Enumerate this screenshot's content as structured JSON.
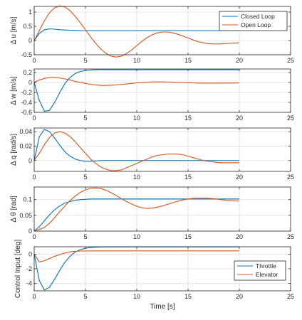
{
  "colors": {
    "blue": "#0072bd",
    "orange": "#d95319",
    "grid": "#dfdfdf",
    "axis": "#262626"
  },
  "chart_data": [
    {
      "type": "line",
      "ylabel": "Δ u [m/s]",
      "xlim": [
        0,
        25
      ],
      "ylim": [
        -0.5,
        1.2
      ],
      "yticks": [
        -0.5,
        0,
        0.5,
        1
      ],
      "ytick_labels": [
        "-0.5",
        "0",
        "0.5",
        "1"
      ],
      "xticks": [
        0,
        5,
        10,
        15,
        20,
        25
      ],
      "xtick_labels": [
        "0",
        "5",
        "10",
        "15",
        "20",
        "25"
      ],
      "grid": true,
      "legend": "top-right",
      "x": [
        0,
        0.5,
        1,
        1.5,
        2,
        2.5,
        3,
        3.5,
        4,
        4.5,
        5,
        5.5,
        6,
        6.5,
        7,
        7.5,
        8,
        8.5,
        9,
        9.5,
        10,
        10.5,
        11,
        11.5,
        12,
        12.5,
        13,
        13.5,
        14,
        14.5,
        15,
        15.5,
        16,
        16.5,
        17,
        17.5,
        18,
        18.5,
        19,
        19.5,
        20
      ],
      "series": [
        {
          "name": "Closed Loop",
          "color": "blue",
          "values": [
            0,
            0.25,
            0.38,
            0.41,
            0.4,
            0.38,
            0.37,
            0.36,
            0.355,
            0.35,
            0.35,
            0.35,
            0.35,
            0.35,
            0.35,
            0.35,
            0.35,
            0.35,
            0.35,
            0.35,
            0.35,
            0.35,
            0.35,
            0.35,
            0.35,
            0.35,
            0.35,
            0.35,
            0.35,
            0.35,
            0.35,
            0.35,
            0.35,
            0.35,
            0.35,
            0.35,
            0.35,
            0.35,
            0.35,
            0.35,
            0.35
          ]
        },
        {
          "name": "Open Loop",
          "color": "orange",
          "values": [
            0,
            0.35,
            0.7,
            0.98,
            1.15,
            1.22,
            1.18,
            1.05,
            0.85,
            0.62,
            0.38,
            0.13,
            -0.1,
            -0.3,
            -0.45,
            -0.55,
            -0.58,
            -0.55,
            -0.46,
            -0.33,
            -0.18,
            -0.03,
            0.1,
            0.2,
            0.27,
            0.3,
            0.3,
            0.27,
            0.22,
            0.16,
            0.09,
            0.02,
            -0.04,
            -0.08,
            -0.11,
            -0.12,
            -0.12,
            -0.11,
            -0.1,
            -0.09,
            -0.08
          ]
        }
      ]
    },
    {
      "type": "line",
      "ylabel": "Δ w [m/s]",
      "xlim": [
        0,
        25
      ],
      "ylim": [
        -0.6,
        0.27
      ],
      "yticks": [
        -0.6,
        -0.4,
        -0.2,
        0,
        0.2
      ],
      "ytick_labels": [
        "-0.6",
        "-0.4",
        "-0.2",
        "0",
        "0.2"
      ],
      "xticks": [
        0,
        5,
        10,
        15,
        20,
        25
      ],
      "xtick_labels": [
        "0",
        "5",
        "10",
        "15",
        "20",
        "25"
      ],
      "grid": true,
      "x": [
        0,
        0.5,
        1,
        1.5,
        2,
        2.5,
        3,
        3.5,
        4,
        4.5,
        5,
        5.5,
        6,
        6.5,
        7,
        7.5,
        8,
        8.5,
        9,
        9.5,
        10,
        10.5,
        11,
        11.5,
        12,
        12.5,
        13,
        13.5,
        14,
        14.5,
        15,
        15.5,
        16,
        16.5,
        17,
        17.5,
        18,
        18.5,
        19,
        19.5,
        20
      ],
      "series": [
        {
          "name": "Closed Loop",
          "color": "blue",
          "values": [
            0,
            -0.36,
            -0.58,
            -0.56,
            -0.4,
            -0.2,
            -0.02,
            0.1,
            0.18,
            0.22,
            0.24,
            0.25,
            0.255,
            0.255,
            0.255,
            0.255,
            0.255,
            0.255,
            0.255,
            0.255,
            0.255,
            0.255,
            0.255,
            0.255,
            0.255,
            0.255,
            0.255,
            0.255,
            0.255,
            0.255,
            0.255,
            0.255,
            0.255,
            0.255,
            0.255,
            0.255,
            0.255,
            0.255,
            0.255,
            0.255,
            0.255
          ]
        },
        {
          "name": "Open Loop",
          "color": "orange",
          "values": [
            0,
            0.05,
            0.08,
            0.1,
            0.1,
            0.09,
            0.07,
            0.05,
            0.02,
            0,
            -0.02,
            -0.04,
            -0.05,
            -0.06,
            -0.06,
            -0.055,
            -0.05,
            -0.04,
            -0.03,
            -0.02,
            -0.01,
            0,
            0.005,
            0.01,
            0.01,
            0.01,
            0.008,
            0.005,
            0.002,
            0,
            -0.005,
            -0.01,
            -0.012,
            -0.015,
            -0.015,
            -0.015,
            -0.015,
            -0.013,
            -0.012,
            -0.011,
            -0.01
          ]
        }
      ]
    },
    {
      "type": "line",
      "ylabel": "Δ q [rad/s]",
      "xlim": [
        0,
        25
      ],
      "ylim": [
        -0.015,
        0.045
      ],
      "yticks": [
        0,
        0.02,
        0.04
      ],
      "ytick_labels": [
        "0",
        "0.02",
        "0.04"
      ],
      "xticks": [
        0,
        5,
        10,
        15,
        20,
        25
      ],
      "xtick_labels": [
        "0",
        "5",
        "10",
        "15",
        "20",
        "25"
      ],
      "grid": true,
      "x": [
        0,
        0.5,
        1,
        1.5,
        2,
        2.5,
        3,
        3.5,
        4,
        4.5,
        5,
        5.5,
        6,
        6.5,
        7,
        7.5,
        8,
        8.5,
        9,
        9.5,
        10,
        10.5,
        11,
        11.5,
        12,
        12.5,
        13,
        13.5,
        14,
        14.5,
        15,
        15.5,
        16,
        16.5,
        17,
        17.5,
        18,
        18.5,
        19,
        19.5,
        20
      ],
      "series": [
        {
          "name": "Closed Loop",
          "color": "blue",
          "values": [
            0,
            0.033,
            0.043,
            0.04,
            0.031,
            0.021,
            0.012,
            0.006,
            0.002,
            0,
            -0.001,
            -0.001,
            -0.0005,
            0,
            0,
            0,
            0,
            0,
            0,
            0,
            0,
            0,
            0,
            0,
            0,
            0,
            0,
            0,
            0,
            0,
            0,
            0,
            0,
            0,
            0,
            0,
            0,
            0,
            0,
            0,
            0
          ]
        },
        {
          "name": "Open Loop",
          "color": "orange",
          "values": [
            0,
            0.01,
            0.022,
            0.032,
            0.038,
            0.04,
            0.038,
            0.033,
            0.026,
            0.018,
            0.01,
            0.002,
            -0.004,
            -0.009,
            -0.012,
            -0.014,
            -0.014,
            -0.013,
            -0.01,
            -0.007,
            -0.004,
            -0.001,
            0.002,
            0.005,
            0.007,
            0.008,
            0.009,
            0.009,
            0.009,
            0.008,
            0.006,
            0.004,
            0.002,
            0,
            -0.001,
            -0.002,
            -0.003,
            -0.003,
            -0.003,
            -0.003,
            -0.003
          ]
        }
      ]
    },
    {
      "type": "line",
      "ylabel": "Δ θ [rad]",
      "xlim": [
        0,
        25
      ],
      "ylim": [
        0,
        0.14
      ],
      "yticks": [
        0,
        0.05,
        0.1
      ],
      "ytick_labels": [
        "0",
        "0.05",
        "0.1"
      ],
      "xticks": [
        0,
        5,
        10,
        15,
        20,
        25
      ],
      "xtick_labels": [
        "0",
        "5",
        "10",
        "15",
        "20",
        "25"
      ],
      "grid": true,
      "x": [
        0,
        0.5,
        1,
        1.5,
        2,
        2.5,
        3,
        3.5,
        4,
        4.5,
        5,
        5.5,
        6,
        6.5,
        7,
        7.5,
        8,
        8.5,
        9,
        9.5,
        10,
        10.5,
        11,
        11.5,
        12,
        12.5,
        13,
        13.5,
        14,
        14.5,
        15,
        15.5,
        16,
        16.5,
        17,
        17.5,
        18,
        18.5,
        19,
        19.5,
        20
      ],
      "series": [
        {
          "name": "Closed Loop",
          "color": "blue",
          "values": [
            0,
            0.014,
            0.033,
            0.052,
            0.068,
            0.08,
            0.089,
            0.094,
            0.098,
            0.1,
            0.101,
            0.102,
            0.102,
            0.102,
            0.102,
            0.102,
            0.102,
            0.102,
            0.102,
            0.102,
            0.102,
            0.102,
            0.102,
            0.102,
            0.102,
            0.102,
            0.102,
            0.102,
            0.102,
            0.102,
            0.102,
            0.102,
            0.102,
            0.102,
            0.102,
            0.102,
            0.102,
            0.102,
            0.102,
            0.102,
            0.102
          ]
        },
        {
          "name": "Open Loop",
          "color": "orange",
          "values": [
            0,
            0.005,
            0.012,
            0.025,
            0.043,
            0.062,
            0.08,
            0.097,
            0.111,
            0.123,
            0.131,
            0.136,
            0.137,
            0.135,
            0.13,
            0.122,
            0.113,
            0.103,
            0.094,
            0.086,
            0.079,
            0.074,
            0.072,
            0.073,
            0.076,
            0.08,
            0.085,
            0.09,
            0.095,
            0.099,
            0.102,
            0.104,
            0.105,
            0.105,
            0.104,
            0.103,
            0.101,
            0.099,
            0.097,
            0.096,
            0.095
          ]
        }
      ]
    },
    {
      "type": "line",
      "xlabel": "Time [s]",
      "ylabel": "Control Input [deg]",
      "xlim": [
        0,
        25
      ],
      "ylim": [
        -5,
        1
      ],
      "yticks": [
        -4,
        -2,
        0
      ],
      "ytick_labels": [
        "-4",
        "-2",
        "0"
      ],
      "xticks": [
        0,
        5,
        10,
        15,
        20,
        25
      ],
      "xtick_labels": [
        "0",
        "5",
        "10",
        "15",
        "20",
        "25"
      ],
      "grid": true,
      "legend": "bottom-right",
      "x": [
        0,
        0.5,
        1,
        1.5,
        2,
        2.5,
        3,
        3.5,
        4,
        4.5,
        5,
        5.5,
        6,
        6.5,
        7,
        7.5,
        8,
        8.5,
        9,
        9.5,
        10,
        10.5,
        11,
        11.5,
        12,
        12.5,
        13,
        13.5,
        14,
        14.5,
        15,
        15.5,
        16,
        16.5,
        17,
        17.5,
        18,
        18.5,
        19,
        19.5,
        20
      ],
      "series": [
        {
          "name": "Throttle",
          "color": "blue",
          "values": [
            0,
            -3.6,
            -4.9,
            -4.5,
            -3.4,
            -2.2,
            -1.1,
            -0.3,
            0.3,
            0.6,
            0.8,
            0.9,
            0.95,
            0.97,
            0.98,
            0.98,
            0.98,
            0.98,
            0.98,
            0.98,
            0.98,
            0.98,
            0.98,
            0.98,
            0.98,
            0.98,
            0.98,
            0.98,
            0.98,
            0.98,
            0.98,
            0.98,
            0.98,
            0.98,
            0.98,
            0.98,
            0.98,
            0.98,
            0.98,
            0.98,
            0.98
          ]
        },
        {
          "name": "Elevator",
          "color": "orange",
          "values": [
            0,
            -1.05,
            -0.9,
            -0.6,
            -0.3,
            -0.05,
            0.15,
            0.3,
            0.38,
            0.42,
            0.43,
            0.44,
            0.44,
            0.44,
            0.44,
            0.44,
            0.44,
            0.44,
            0.44,
            0.44,
            0.44,
            0.44,
            0.44,
            0.44,
            0.44,
            0.44,
            0.44,
            0.44,
            0.44,
            0.44,
            0.44,
            0.44,
            0.44,
            0.44,
            0.44,
            0.44,
            0.44,
            0.44,
            0.44,
            0.44,
            0.44
          ]
        }
      ]
    }
  ]
}
